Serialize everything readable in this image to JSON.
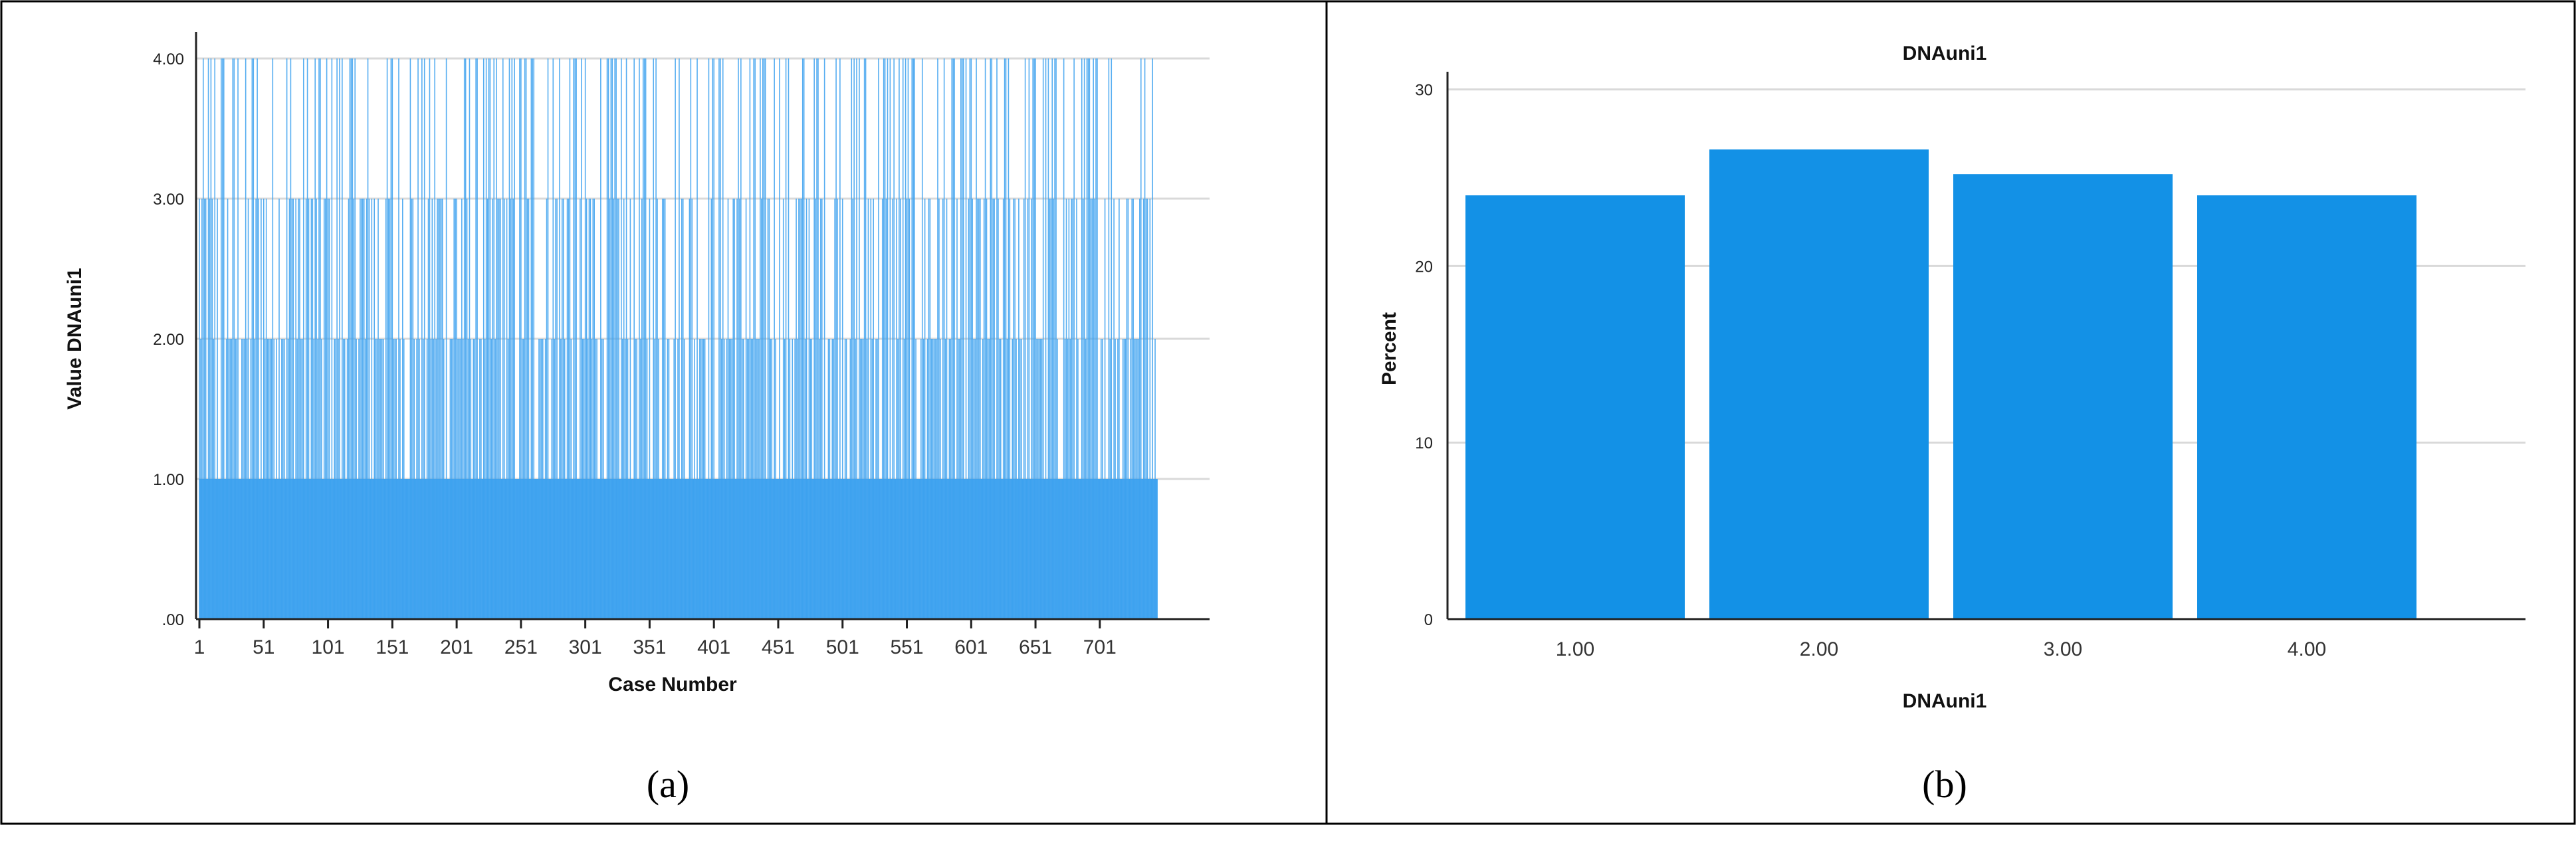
{
  "colors": {
    "bar": "#1391e6",
    "bar_line": "#3aa0ef",
    "grid": "#d9d9d9",
    "frame": "#000000"
  },
  "panels": [
    {
      "caption": "(a)"
    },
    {
      "caption": "(b)"
    }
  ],
  "chart_data": [
    {
      "type": "bar",
      "title": "",
      "xlabel": "Case Number",
      "ylabel": "Value DNAuni1",
      "ylim": [
        0,
        4
      ],
      "yticks": [
        ".00",
        "1.00",
        "2.00",
        "3.00",
        "4.00"
      ],
      "xticks": [
        "1",
        "51",
        "101",
        "151",
        "201",
        "251",
        "301",
        "351",
        "401",
        "451",
        "501",
        "551",
        "601",
        "651",
        "701"
      ],
      "n_cases": 745,
      "value_levels": [
        1,
        2,
        3,
        4
      ],
      "grid": "horizontal"
    },
    {
      "type": "bar",
      "title": "DNAuni1",
      "xlabel": "DNAuni1",
      "ylabel": "Percent",
      "categories": [
        "1.00",
        "2.00",
        "3.00",
        "4.00"
      ],
      "values": [
        24.0,
        26.6,
        25.2,
        24.0
      ],
      "ylim": [
        0,
        31
      ],
      "yticks": [
        "0",
        "10",
        "20",
        "30"
      ],
      "grid": "horizontal"
    }
  ]
}
